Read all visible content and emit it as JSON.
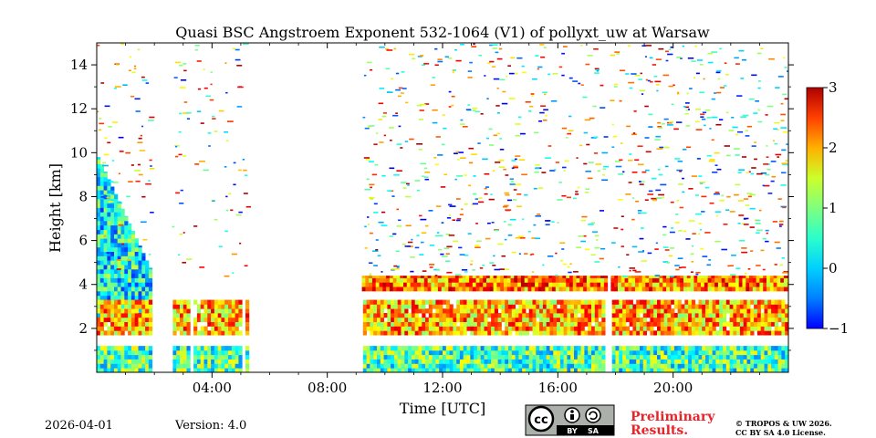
{
  "chart_data": {
    "type": "heatmap",
    "title": "Quasi BSC Angstroem Exponent 532-1064 (V1) of pollyxt_uw at Warsaw",
    "xlabel": "Time [UTC]",
    "ylabel": "Height [km]",
    "xlim": [
      0,
      24
    ],
    "ylim": [
      0,
      15
    ],
    "xticks": [
      4,
      8,
      12,
      16,
      20
    ],
    "xtick_labels": [
      "04:00",
      "08:00",
      "12:00",
      "16:00",
      "20:00"
    ],
    "yticks": [
      2,
      4,
      6,
      8,
      10,
      12,
      14
    ],
    "ytick_labels": [
      "2",
      "4",
      "6",
      "8",
      "10",
      "12",
      "14"
    ],
    "colorbar": {
      "min": -1,
      "max": 3,
      "ticks": [
        -1,
        0,
        1,
        2,
        3
      ],
      "tick_labels": [
        "−1",
        "0",
        "1",
        "2",
        "3"
      ],
      "colormap": "jet"
    },
    "layers": [
      {
        "name": "near-surface layer",
        "start_h": 0,
        "end_h": 24,
        "bottom_km": 0,
        "top_km": 1.2,
        "value": 0.8
      },
      {
        "name": "boundary-layer top",
        "start_h": 0,
        "end_h": 24,
        "bottom_km": 1.7,
        "top_km": 3.3,
        "value": 1.8
      },
      {
        "name": "aerosol layer 4 km",
        "start_h": 9.2,
        "end_h": 24,
        "bottom_km": 3.7,
        "top_km": 4.4,
        "value": 2.0
      },
      {
        "name": "early morning plume",
        "start_h": 0,
        "end_h": 2,
        "bottom_km": 2.3,
        "top_km": 9.8,
        "value": 0.5
      }
    ],
    "no_data_gaps_h": [
      [
        1.85,
        2.6
      ],
      [
        3.15,
        3.3
      ],
      [
        4.1,
        4.2
      ],
      [
        4.95,
        5.05
      ],
      [
        5.2,
        9.2
      ],
      [
        17.6,
        17.8
      ]
    ]
  },
  "footer": {
    "date": "2026-04-01",
    "version": "Version: 4.0",
    "preliminary": [
      "Preliminary",
      "Results."
    ],
    "copyright": [
      "© TROPOS & UW 2026.",
      "CC BY SA 4.0 License."
    ],
    "license_badge": [
      "cc",
      "BY",
      "SA"
    ]
  }
}
